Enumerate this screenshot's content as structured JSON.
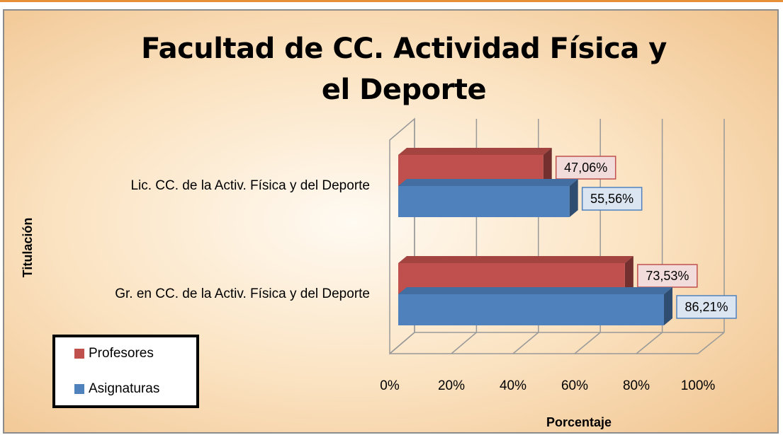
{
  "chart_data": {
    "type": "bar",
    "orientation": "horizontal",
    "three_d": true,
    "title": "Facultad de CC. Actividad Física y el Deporte",
    "x_label": "Porcentaje",
    "y_label": "Titulación",
    "categories": [
      "Lic. CC. de la Activ. Física y del Deporte",
      "Gr. en CC. de la Activ. Física y del Deporte"
    ],
    "series": [
      {
        "name": "Profesores",
        "color": "#c0504d",
        "values": [
          47.06,
          73.53
        ],
        "value_labels": [
          "47,06%",
          "73,53%"
        ]
      },
      {
        "name": "Asignaturas",
        "color": "#4f81bd",
        "values": [
          55.56,
          86.21
        ],
        "value_labels": [
          "55,56%",
          "86,21%"
        ]
      }
    ],
    "xlim": [
      0,
      100
    ],
    "xticks": [
      {
        "value": 0,
        "label": "0%"
      },
      {
        "value": 20,
        "label": "20%"
      },
      {
        "value": 40,
        "label": "40%"
      },
      {
        "value": 60,
        "label": "60%"
      },
      {
        "value": 80,
        "label": "80%"
      },
      {
        "value": 100,
        "label": "100%"
      }
    ],
    "grid": true,
    "legend": "bottom-left"
  }
}
